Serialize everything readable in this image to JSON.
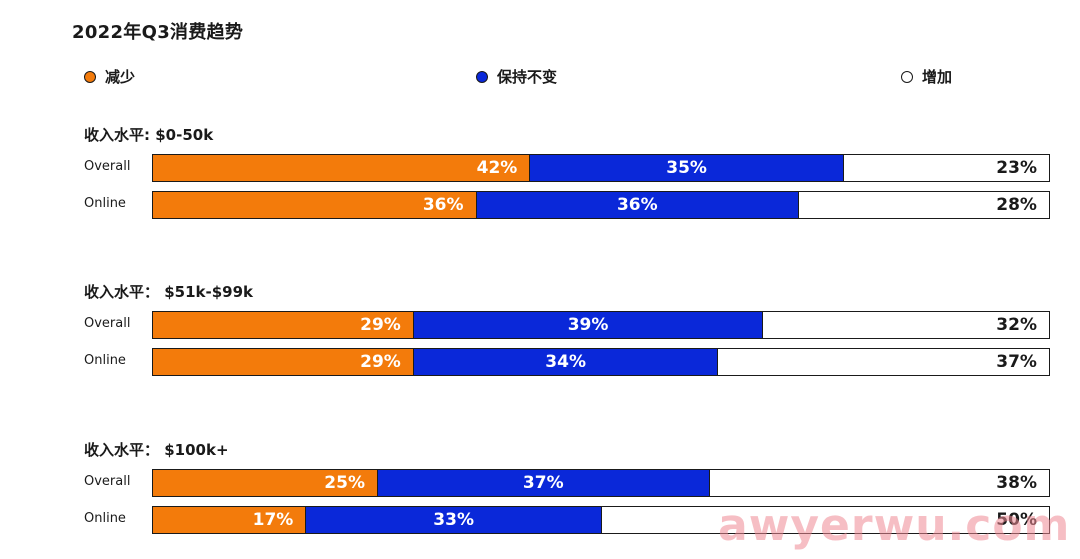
{
  "title": "2022年Q3消费趋势",
  "legend": [
    {
      "label": "减少",
      "color": "#f37b0b"
    },
    {
      "label": "保持不变",
      "color": "#0a28d9"
    },
    {
      "label": "增加",
      "color": "#ffffff"
    }
  ],
  "watermark": "awyerwu.com",
  "chart_data": {
    "type": "bar",
    "orientation": "horizontal",
    "stacked": true,
    "percent": true,
    "title": "2022年Q3消费趋势",
    "series_names": [
      "减少",
      "保持不变",
      "增加"
    ],
    "groups": [
      {
        "title": "收入水平: $0-50k",
        "rows": [
          {
            "label": "Overall",
            "values": [
              42,
              35,
              23
            ]
          },
          {
            "label": "Online",
            "values": [
              36,
              36,
              28
            ]
          }
        ]
      },
      {
        "title": "收入水平： $51k-$99k",
        "rows": [
          {
            "label": "Overall",
            "values": [
              29,
              39,
              32
            ]
          },
          {
            "label": "Online",
            "values": [
              29,
              34,
              37
            ]
          }
        ]
      },
      {
        "title": "收入水平： $100k+",
        "rows": [
          {
            "label": "Overall",
            "values": [
              25,
              37,
              38
            ]
          },
          {
            "label": "Online",
            "values": [
              17,
              33,
              50
            ]
          }
        ]
      }
    ]
  }
}
